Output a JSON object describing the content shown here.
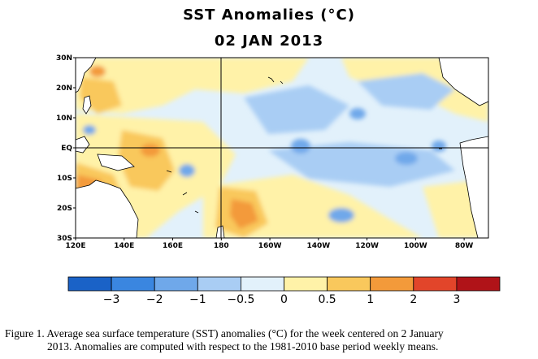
{
  "title": "SST Anomalies (°C)",
  "date": "02 JAN 2013",
  "map": {
    "lat_labels": [
      "30N",
      "20N",
      "10N",
      "EQ",
      "10S",
      "20S",
      "30S"
    ],
    "lon_labels": [
      "120E",
      "140E",
      "160E",
      "180",
      "160W",
      "140W",
      "120W",
      "100W",
      "80W"
    ],
    "reference_lines": [
      "Equator",
      "180"
    ],
    "land_color": "#ffffff",
    "anomaly_regions": [
      {
        "name": "warm-east-australia",
        "level": 2
      },
      {
        "name": "warm-warm-pool",
        "level": 1
      },
      {
        "name": "warm-south-central",
        "level": 1.5
      },
      {
        "name": "warm-north-west",
        "level": 1
      },
      {
        "name": "cool-east-equatorial",
        "level": -0.5
      },
      {
        "name": "cool-central-north",
        "level": -0.5
      },
      {
        "name": "cool-patches",
        "level": -1
      }
    ]
  },
  "colorbar": {
    "tick_labels": [
      "−3",
      "−2",
      "−1",
      "−0.5",
      "0",
      "0.5",
      "1",
      "2",
      "3"
    ],
    "colors": [
      "#1a62c7",
      "#3a86e0",
      "#6fa8ea",
      "#a9cdf4",
      "#e2f1fb",
      "#fff2a8",
      "#f9c85c",
      "#f39a3a",
      "#e2452a",
      "#b01318"
    ]
  },
  "caption": {
    "line1": "Figure 1. Average sea surface temperature (SST) anomalies  (°C) for the week centered on 2 January",
    "line2": "2013.   Anomalies are computed with respect to the 1981-2010 base period weekly means."
  }
}
